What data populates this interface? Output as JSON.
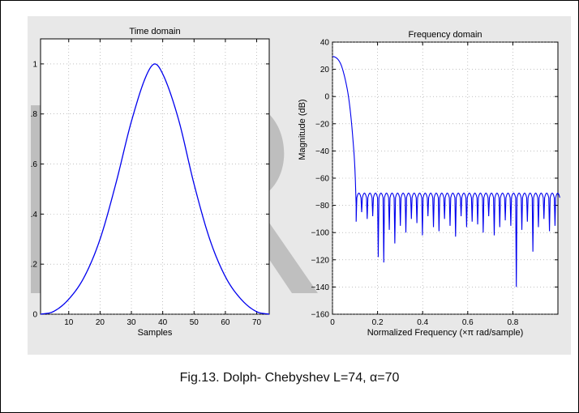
{
  "caption": "Fig.13.  Dolph- Chebyshev L=74, α=70",
  "colors": {
    "line": "#0000ee",
    "figure_bg": "#e8e8e8",
    "watermark": "#b4b4b4"
  },
  "watermark_text": "ER",
  "chart_data": [
    {
      "type": "line",
      "title": "Time domain",
      "xlabel": "Samples",
      "ylabel": "",
      "xlim": [
        1,
        74
      ],
      "ylim": [
        0,
        1.1
      ],
      "grid": true,
      "xticks": [
        10,
        20,
        30,
        40,
        50,
        60,
        70
      ],
      "xtick_labels": [
        "10",
        "20",
        "30",
        "40",
        "50",
        "60",
        "70"
      ],
      "yticks": [
        0,
        0.2,
        0.4,
        0.6,
        0.8,
        1
      ],
      "ytick_labels": [
        "0",
        ".2",
        ".4",
        ".6",
        ".8",
        "1"
      ],
      "series": [
        {
          "x": [
            1,
            5,
            10,
            15,
            20,
            25,
            30,
            35,
            37.5,
            40,
            45,
            50,
            55,
            60,
            65,
            70,
            74
          ],
          "values": [
            0.0,
            0.01,
            0.06,
            0.15,
            0.3,
            0.52,
            0.77,
            0.96,
            1.0,
            0.96,
            0.78,
            0.52,
            0.3,
            0.15,
            0.06,
            0.01,
            0.0
          ]
        }
      ]
    },
    {
      "type": "line",
      "title": "Frequency domain",
      "xlabel": "Normalized Frequency  (×π rad/sample)",
      "ylabel": "Magnitude (dB)",
      "xlim": [
        0,
        1
      ],
      "ylim": [
        -160,
        40
      ],
      "grid": true,
      "xticks": [
        0,
        0.2,
        0.4,
        0.6,
        0.8
      ],
      "xtick_labels": [
        "0",
        "0.2",
        "0.4",
        "0.6",
        "0.8"
      ],
      "yticks": [
        40,
        20,
        0,
        -20,
        -40,
        -60,
        -80,
        -100,
        -120,
        -140,
        -160
      ],
      "ytick_labels": [
        "40",
        "20",
        "0",
        "−20",
        "−40",
        "−60",
        "−80",
        "−100",
        "−120",
        "−140",
        "−160"
      ],
      "mainlobe": {
        "x": [
          0,
          0.01,
          0.02,
          0.03,
          0.04,
          0.05,
          0.06,
          0.07,
          0.08,
          0.09,
          0.1,
          0.105
        ],
        "values": [
          29.4,
          29.1,
          28,
          26,
          22.5,
          17,
          10,
          1,
          -12,
          -30,
          -55,
          -80
        ]
      },
      "sidelobes": {
        "first_null": 0.105,
        "spacing": 0.0245,
        "peak_db": -71,
        "null_depths": [
          -92,
          -85,
          -90,
          -88,
          -118,
          -122,
          -98,
          -108,
          -95,
          -100,
          -90,
          -93,
          -102,
          -88,
          -96,
          -99,
          -90,
          -95,
          -103,
          -88,
          -96,
          -92,
          -94,
          -100,
          -88,
          -102,
          -96,
          -91,
          -95,
          -140,
          -98,
          -92,
          -114,
          -96,
          -90,
          -99,
          -95
        ]
      }
    }
  ]
}
